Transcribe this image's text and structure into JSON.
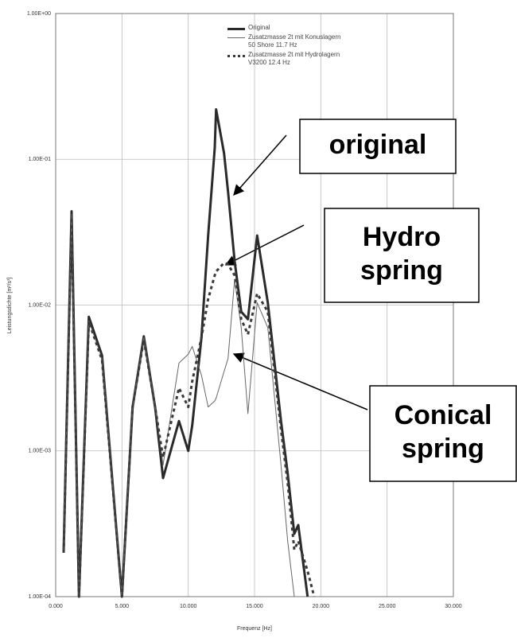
{
  "chart_data": {
    "type": "line",
    "xlabel": "Frequenz [Hz]",
    "ylabel": "Leistungsdichte [m²/s³]",
    "log_y": true,
    "grid": true,
    "xlim": [
      0,
      30
    ],
    "xticks": [
      {
        "value": 0,
        "label": "0.000"
      },
      {
        "value": 5,
        "label": "5.000"
      },
      {
        "value": 10,
        "label": "10.000"
      },
      {
        "value": 15,
        "label": "15.000"
      },
      {
        "value": 20,
        "label": "20.000"
      },
      {
        "value": 25,
        "label": "25.000"
      },
      {
        "value": 30,
        "label": "30.000"
      }
    ],
    "ylim": [
      0.0001,
      1
    ],
    "yticks": [
      {
        "value": 1,
        "label": "1.00E+00"
      },
      {
        "value": 0.1,
        "label": "1.00E-01"
      },
      {
        "value": 0.01,
        "label": "1.00E-02"
      },
      {
        "value": 0.001,
        "label": "1.00E-03"
      },
      {
        "value": 0.0001,
        "label": "1.00E-04"
      }
    ],
    "x": [
      0.6,
      1.2,
      1.76,
      2.5,
      3.5,
      5,
      5.8,
      6.65,
      7.5,
      8.1,
      9.3,
      10,
      10.3,
      11,
      11.5,
      12,
      12.1,
      12.7,
      13,
      13.5,
      14,
      14.5,
      15.2,
      16,
      17,
      17.5,
      18,
      18.3,
      19,
      19.5
    ],
    "series": [
      {
        "name": "Original",
        "color": "#2a2a2a",
        "width": 3,
        "dashed": false,
        "values": [
          0.0002,
          0.044,
          0.0001,
          0.0083,
          0.0045,
          0.0001,
          0.002,
          0.0061,
          0.002,
          0.00065,
          0.0016,
          0.001,
          0.0015,
          0.006,
          0.03,
          0.12,
          0.22,
          0.11,
          0.06,
          0.02,
          0.009,
          0.008,
          0.03,
          0.0104,
          0.0016,
          0.0007,
          0.00027,
          0.00031,
          0.0001,
          null
        ]
      },
      {
        "name": "Zusatzmasse 2t mit Konuslagern 50 Shore 11.7 Hz",
        "color": "#666666",
        "width": 1,
        "dashed": false,
        "values": [
          0.0002,
          0.042,
          0.0001,
          0.0078,
          0.0043,
          0.0001,
          0.002,
          0.006,
          0.002,
          0.0008,
          0.004,
          0.0046,
          0.0052,
          0.0033,
          0.002,
          0.0022,
          0.0023,
          0.0035,
          0.0043,
          0.015,
          0.007,
          0.0018,
          0.0104,
          0.007,
          0.0008,
          0.00024,
          0.0001,
          null,
          null,
          null
        ]
      },
      {
        "name": "Zusatzmasse 2t mit Hydrolagern V3200 12.4 Hz",
        "color": "#3a3a3a",
        "width": 3,
        "dashed": true,
        "values": [
          0.0002,
          0.04,
          0.0001,
          0.0077,
          0.0042,
          0.0001,
          0.002,
          0.0058,
          0.002,
          0.0009,
          0.0027,
          0.002,
          0.003,
          0.006,
          0.011,
          0.016,
          0.017,
          0.0195,
          0.019,
          0.016,
          0.008,
          0.0063,
          0.012,
          0.009,
          0.0014,
          0.0006,
          0.00021,
          0.00024,
          0.00015,
          0.0001
        ]
      }
    ],
    "annotations": [
      [
        "original"
      ],
      [
        "Hydro",
        "spring"
      ],
      [
        "Conical",
        "spring"
      ]
    ]
  }
}
